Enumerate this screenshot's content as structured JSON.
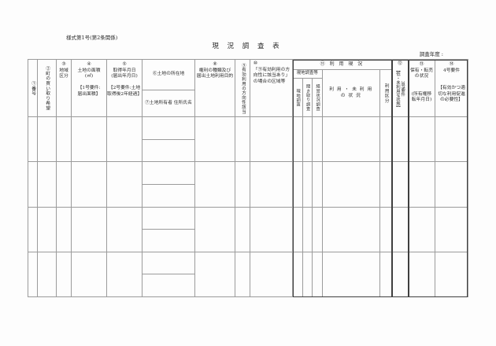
{
  "page": {
    "form_number": "様式第1号(第2条関係)",
    "title": "現 況 調 査 表",
    "survey_year_label": "調査年度 :"
  },
  "colors": {
    "paper": "#fdfdfd",
    "line": "#9b9b9b",
    "line_bold": "#3f3f3f",
    "text": "#2a2a2a"
  },
  "table": {
    "row_count": 4,
    "headers": {
      "no": "①番号",
      "town_purchase_wish": "②町の買い取り希望",
      "area_class": "③\n地域\n区分",
      "land_area": "④\n土地の面積\n(㎡)\n\n【1号要件:\n届出面積】",
      "acquisition_date": "⑤\n取得年月日\n(届出年月日)\n\n【2号要件:土地\n取得後2年経過】",
      "land_location": "⑥土地の所在地",
      "land_owner": "⑦土地所有者 住所氏名",
      "right_type": "⑧\n権利の種類及び\n届出土地利用目的",
      "effective_use_direction": "⑨有効利用の方向性該当",
      "applicable_area": "⑩\n「⑨有効利用の方\n向性に該当あり」\nの場合の区域等",
      "usage_status_title": "⑪ 利 用 現 況",
      "field_survey_group": "現地調査等",
      "field_survey": "現地調査",
      "interview_survey": "聞き取り調査",
      "management_survey": "経営状況調査",
      "used_unused_status": "利 用 ・ 未 利 用\nの 状 況",
      "usage_class": "利用区分",
      "requirement3_num": "⑫",
      "requirement3_text": "3号要件\n【低・未利用な状態】",
      "holding_resale": "⑬\n保有・転売\nの状況\n\n\n(所有権移\n転年月日)",
      "requirement4": "⑭\n4号要件\n\n\n【有効かつ適\n切な利用促進\nの必要性】"
    }
  }
}
